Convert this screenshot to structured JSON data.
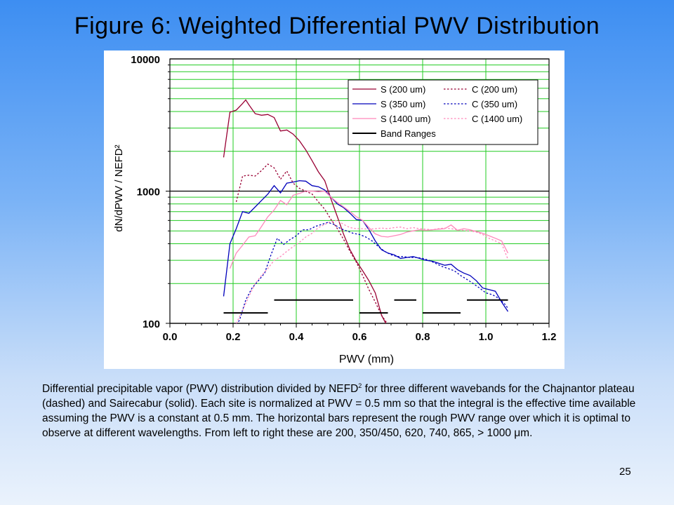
{
  "slide": {
    "title": "Figure 6: Weighted Differential PWV Distribution",
    "page_number": "25",
    "caption_part1": "Differential precipitable vapor (PWV) distribution divided by NEFD",
    "caption_sup": "2",
    "caption_part2": " for three different wavebands for the Chajnantor plateau (dashed) and Sairecabur (solid).  Each site is normalized at PWV = 0.5 mm so that the integral is the effective time available assuming the PWV is a constant at 0.5 mm.   The horizontal bars represent the rough PWV range over which it is optimal to observe at different wavelengths.  From left to right these are 200, 350/450, 620, 740, 865, > 1000 μm."
  },
  "chart_data": {
    "type": "line",
    "xlabel": "PWV (mm)",
    "ylabel": "dN/dPWV / NEFD²",
    "xlim": [
      0.0,
      1.2
    ],
    "ylim": [
      100,
      10000
    ],
    "yscale": "log",
    "x_ticks": [
      "0.0",
      "0.2",
      "0.4",
      "0.6",
      "0.8",
      "1.0",
      "1.2"
    ],
    "y_ticks": [
      "100",
      "1000",
      "10000"
    ],
    "grid": true,
    "legend_position": "top-right",
    "colors": {
      "grid": "#22cc22",
      "s200": "#990033",
      "s350": "#0000bb",
      "s1400": "#ff88bb",
      "band": "#000000"
    },
    "series": [
      {
        "name": "S (200 um)",
        "style": "solid",
        "color": "#990033",
        "x": [
          0.17,
          0.19,
          0.21,
          0.23,
          0.24,
          0.25,
          0.27,
          0.29,
          0.31,
          0.33,
          0.35,
          0.37,
          0.39,
          0.41,
          0.43,
          0.45,
          0.47,
          0.49,
          0.51,
          0.53,
          0.55,
          0.57,
          0.59,
          0.61,
          0.63,
          0.65,
          0.67,
          0.69
        ],
        "y": [
          1800,
          3950,
          4100,
          4600,
          4900,
          4500,
          3850,
          3750,
          3800,
          3600,
          2850,
          2900,
          2700,
          2400,
          2050,
          1700,
          1400,
          1200,
          870,
          640,
          470,
          360,
          295,
          250,
          210,
          170,
          115,
          93
        ]
      },
      {
        "name": "S (350 um)",
        "style": "solid",
        "color": "#0000bb",
        "x": [
          0.17,
          0.19,
          0.21,
          0.23,
          0.25,
          0.27,
          0.29,
          0.31,
          0.33,
          0.35,
          0.37,
          0.39,
          0.41,
          0.43,
          0.45,
          0.47,
          0.49,
          0.51,
          0.53,
          0.55,
          0.57,
          0.59,
          0.61,
          0.63,
          0.65,
          0.67,
          0.69,
          0.71,
          0.73,
          0.75,
          0.77,
          0.79,
          0.81,
          0.83,
          0.85,
          0.87,
          0.89,
          0.91,
          0.93,
          0.95,
          0.97,
          0.99,
          1.01,
          1.03,
          1.05,
          1.07
        ],
        "y": [
          160,
          400,
          520,
          700,
          680,
          760,
          850,
          950,
          1100,
          970,
          1150,
          1170,
          1200,
          1190,
          1100,
          1080,
          1020,
          900,
          800,
          750,
          680,
          610,
          600,
          510,
          420,
          360,
          340,
          330,
          310,
          315,
          320,
          310,
          300,
          295,
          285,
          275,
          280,
          255,
          240,
          230,
          210,
          185,
          180,
          175,
          145,
          123
        ]
      },
      {
        "name": "S (1400 um)",
        "style": "solid",
        "color": "#ff88bb",
        "x": [
          0.19,
          0.21,
          0.23,
          0.25,
          0.27,
          0.29,
          0.31,
          0.33,
          0.35,
          0.37,
          0.39,
          0.41,
          0.43,
          0.45,
          0.47,
          0.49,
          0.51,
          0.53,
          0.55,
          0.57,
          0.59,
          0.61,
          0.63,
          0.65,
          0.67,
          0.69,
          0.71,
          0.73,
          0.75,
          0.77,
          0.79,
          0.81,
          0.83,
          0.85,
          0.87,
          0.89,
          0.91,
          0.93,
          0.95,
          0.97,
          0.99,
          1.01,
          1.03,
          1.05,
          1.07
        ],
        "y": [
          260,
          340,
          390,
          450,
          460,
          540,
          640,
          720,
          850,
          790,
          930,
          960,
          1000,
          1000,
          990,
          1000,
          900,
          820,
          760,
          700,
          640,
          600,
          530,
          475,
          455,
          450,
          460,
          470,
          490,
          500,
          510,
          505,
          510,
          515,
          520,
          555,
          505,
          520,
          510,
          495,
          480,
          460,
          440,
          420,
          340
        ]
      },
      {
        "name": "C (200 um)",
        "style": "dotted",
        "color": "#990033",
        "x": [
          0.21,
          0.23,
          0.25,
          0.27,
          0.29,
          0.31,
          0.33,
          0.35,
          0.37,
          0.39,
          0.41,
          0.43,
          0.45,
          0.47,
          0.49,
          0.51,
          0.53,
          0.55,
          0.57,
          0.59,
          0.61,
          0.63,
          0.65,
          0.67,
          0.69
        ],
        "y": [
          830,
          1300,
          1320,
          1300,
          1430,
          1600,
          1500,
          1230,
          1420,
          1150,
          1050,
          1000,
          950,
          830,
          730,
          610,
          520,
          430,
          350,
          290,
          230,
          180,
          145,
          115,
          98
        ]
      },
      {
        "name": "C (350 um)",
        "style": "dotted",
        "color": "#0000bb",
        "x": [
          0.2,
          0.22,
          0.24,
          0.26,
          0.28,
          0.3,
          0.32,
          0.34,
          0.36,
          0.38,
          0.4,
          0.42,
          0.44,
          0.46,
          0.48,
          0.5,
          0.52,
          0.54,
          0.56,
          0.58,
          0.6,
          0.62,
          0.64,
          0.66,
          0.68,
          0.7,
          0.72,
          0.74,
          0.76,
          0.78,
          0.8,
          0.82,
          0.84,
          0.86,
          0.88,
          0.9,
          0.92,
          0.94,
          0.96,
          0.98,
          1.0,
          1.02,
          1.04,
          1.06,
          1.07
        ],
        "y": [
          95,
          105,
          150,
          185,
          210,
          240,
          330,
          440,
          395,
          430,
          460,
          510,
          510,
          540,
          560,
          580,
          560,
          520,
          500,
          480,
          470,
          450,
          420,
          380,
          350,
          330,
          320,
          320,
          315,
          315,
          310,
          300,
          285,
          270,
          260,
          250,
          230,
          215,
          200,
          185,
          170,
          165,
          155,
          140,
          130
        ]
      },
      {
        "name": "C (1400 um)",
        "style": "dotted",
        "color": "#ff88bb",
        "x": [
          0.21,
          0.23,
          0.25,
          0.27,
          0.29,
          0.31,
          0.33,
          0.35,
          0.37,
          0.39,
          0.41,
          0.43,
          0.45,
          0.47,
          0.49,
          0.51,
          0.53,
          0.55,
          0.57,
          0.59,
          0.61,
          0.63,
          0.65,
          0.67,
          0.69,
          0.71,
          0.73,
          0.75,
          0.77,
          0.79,
          0.81,
          0.83,
          0.85,
          0.87,
          0.89,
          0.91,
          0.93,
          0.95,
          0.97,
          0.99,
          1.01,
          1.03,
          1.05,
          1.07
        ],
        "y": [
          100,
          125,
          160,
          200,
          230,
          260,
          300,
          320,
          350,
          380,
          410,
          450,
          480,
          530,
          560,
          590,
          600,
          560,
          530,
          520,
          520,
          515,
          520,
          525,
          520,
          530,
          535,
          520,
          530,
          520,
          515,
          510,
          520,
          525,
          520,
          510,
          505,
          500,
          490,
          470,
          440,
          420,
          400,
          305
        ]
      }
    ],
    "band_ranges": [
      {
        "x": [
          0.17,
          0.31
        ],
        "y": 120
      },
      {
        "x": [
          0.33,
          0.58
        ],
        "y": 150
      },
      {
        "x": [
          0.6,
          0.69
        ],
        "y": 120
      },
      {
        "x": [
          0.71,
          0.78
        ],
        "y": 150
      },
      {
        "x": [
          0.8,
          0.92
        ],
        "y": 120
      },
      {
        "x": [
          0.94,
          1.07
        ],
        "y": 150
      }
    ],
    "legend": {
      "band_ranges_label": "Band Ranges"
    }
  }
}
